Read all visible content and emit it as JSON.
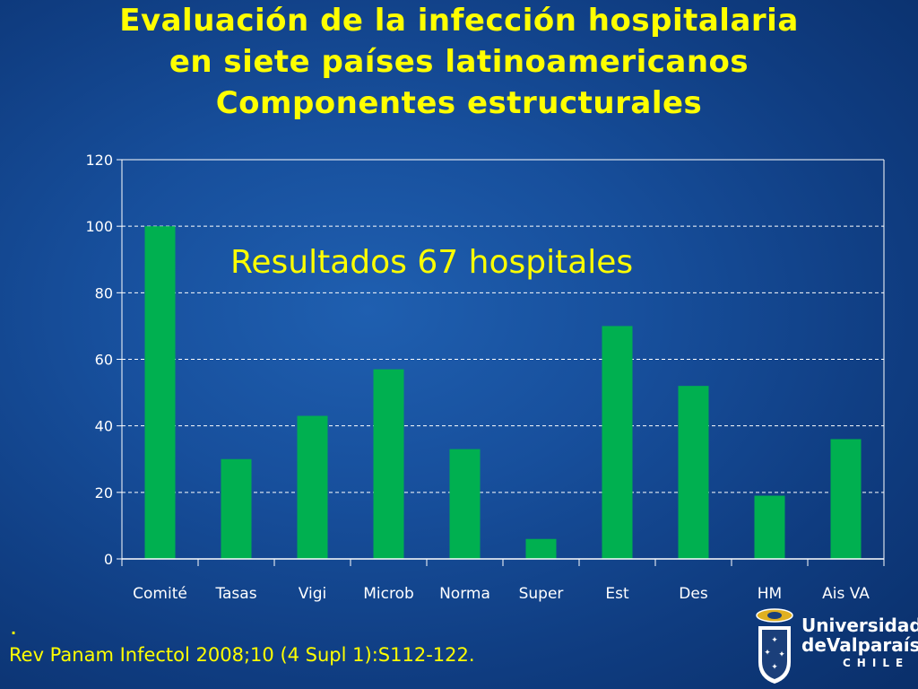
{
  "title_lines": [
    "Evaluación de la infección hospitalaria",
    "en siete países latinoamericanos",
    "Componentes estructurales"
  ],
  "annotation": "Resultados 67 hospitales",
  "footnote_dot": ".",
  "reference": "Rev Panam Infectol 2008;10 (4 Supl 1):S112-122.",
  "logo": {
    "line1": "Universidad",
    "line2": "deValparaíso",
    "line3": "CHILE"
  },
  "colors": {
    "background": "#174f9c",
    "bar": "#00b050",
    "title": "#ffff00",
    "axis_text": "#ffffff",
    "gridline": "#ffffff"
  },
  "chart_data": {
    "type": "bar",
    "categories": [
      "Comité",
      "Tasas",
      "Vigi",
      "Microb",
      "Norma",
      "Super",
      "Est",
      "Des",
      "HM",
      "Ais VA"
    ],
    "values": [
      100,
      30,
      43,
      57,
      33,
      6,
      70,
      52,
      19,
      36
    ],
    "ylim": [
      0,
      120
    ],
    "yticks": [
      0,
      20,
      40,
      60,
      80,
      100,
      120
    ],
    "grid": true,
    "xlabel": "",
    "ylabel": ""
  }
}
